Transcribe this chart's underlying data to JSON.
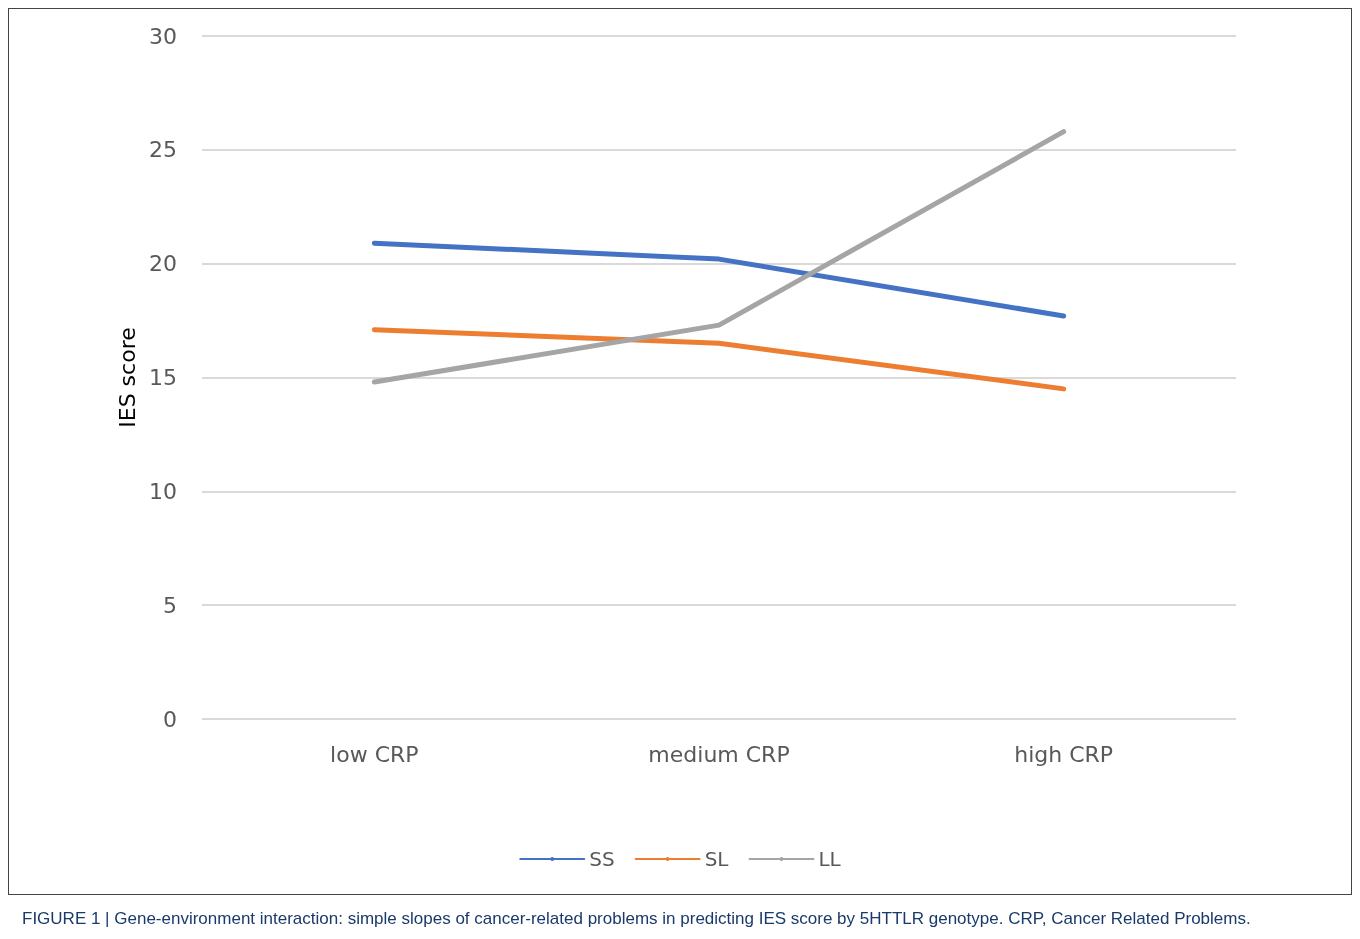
{
  "chart_data": {
    "type": "line",
    "ylabel": "IES score",
    "categories": [
      "low CRP",
      "medium CRP",
      "high CRP"
    ],
    "series": [
      {
        "name": "SS",
        "color": "#4472c4",
        "values": [
          20.9,
          20.2,
          17.7
        ]
      },
      {
        "name": "SL",
        "color": "#ed7d31",
        "values": [
          17.1,
          16.5,
          14.5
        ]
      },
      {
        "name": "LL",
        "color": "#a5a5a5",
        "values": [
          14.8,
          17.3,
          25.8
        ]
      }
    ],
    "ylim": [
      0,
      30
    ],
    "yticks": [
      0,
      5,
      10,
      15,
      20,
      25,
      30
    ],
    "grid": "y",
    "legend": "bottom",
    "marker": "none",
    "line_style": "solid",
    "annotations": [
      "FIGURE 1 | Gene-environment interaction: simple slopes of cancer-related problems in predicting IES score by 5HTTLR genotype. CRP, Cancer Related Problems."
    ]
  }
}
